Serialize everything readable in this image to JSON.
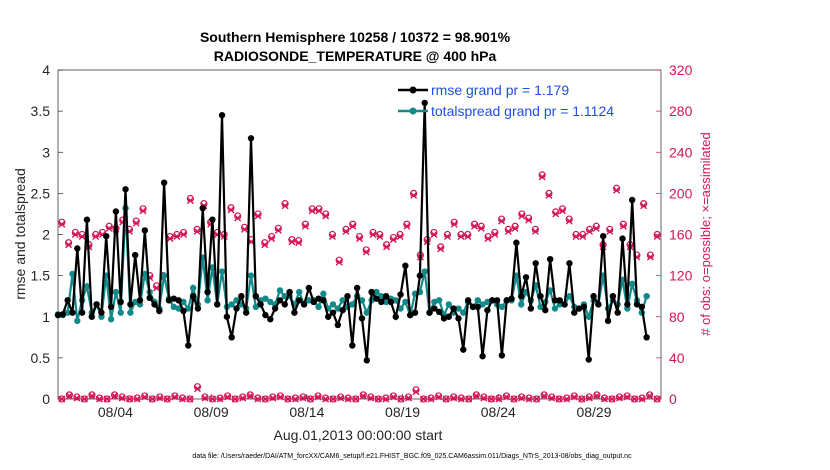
{
  "chart_data": {
    "type": "line",
    "title_line1": "Southern Hemisphere 10258 / 10372 = 98.901%",
    "title_line2": "RADIOSONDE_TEMPERATURE @ 400 hPa",
    "ylabel_left": "rmse and totalspread",
    "ylabel_right": "# of obs: o=possible; ×=assimilated",
    "xlabel": "Aug.01,2013 00:00:00 start",
    "footnote": "data file: /Users/raeder/DAI/ATM_forcXX/CAM6_setup/f.e21.FHIST_BGC.f09_025.CAM6assim.011/Diags_NTrS_2013-08/obs_diag_output.nc",
    "xlim": [
      1,
      32.5
    ],
    "ylim_left": [
      0,
      4
    ],
    "ylim_right": [
      0,
      320
    ],
    "yticks_left": [
      "0",
      "0.5",
      "1",
      "1.5",
      "2",
      "2.5",
      "3",
      "3.5",
      "4"
    ],
    "yticks_right": [
      "0",
      "40",
      "80",
      "120",
      "160",
      "200",
      "240",
      "280",
      "320"
    ],
    "xticks": [
      {
        "label": "08/04",
        "day": 4
      },
      {
        "label": "08/09",
        "day": 9
      },
      {
        "label": "08/14",
        "day": 14
      },
      {
        "label": "08/19",
        "day": 19
      },
      {
        "label": "08/24",
        "day": 24
      },
      {
        "label": "08/29",
        "day": 29
      }
    ],
    "series": [
      {
        "name": "rmse grand pr = 1.179",
        "color": "#000000",
        "axis": "left",
        "values": [
          1.02,
          1.03,
          1.2,
          1.05,
          1.83,
          1.05,
          2.18,
          1.0,
          1.15,
          1.05,
          1.98,
          1.12,
          2.28,
          1.18,
          2.55,
          1.15,
          1.75,
          1.2,
          2.05,
          1.23,
          1.15,
          1.07,
          2.63,
          1.2,
          1.22,
          1.2,
          1.07,
          0.65,
          1.25,
          1.1,
          2.32,
          1.3,
          2.18,
          1.15,
          3.45,
          1.0,
          0.75,
          1.1,
          1.25,
          1.05,
          3.17,
          1.25,
          1.15,
          1.02,
          0.97,
          1.1,
          1.2,
          1.15,
          1.3,
          1.05,
          1.2,
          1.15,
          1.35,
          1.18,
          1.22,
          1.2,
          1.0,
          1.05,
          0.9,
          1.08,
          1.25,
          0.65,
          1.35,
          0.98,
          0.47,
          1.3,
          1.22,
          1.18,
          1.25,
          1.18,
          1.0,
          1.27,
          1.62,
          1.02,
          1.05,
          1.5,
          3.6,
          1.05,
          1.1,
          1.06,
          0.98,
          1.0,
          1.1,
          0.98,
          0.6,
          1.2,
          1.12,
          1.12,
          0.52,
          1.08,
          1.2,
          1.2,
          0.53,
          1.2,
          1.22,
          1.9,
          1.25,
          1.48,
          1.1,
          1.65,
          1.25,
          1.08,
          1.7,
          1.2,
          1.2,
          1.15,
          1.65,
          1.05,
          1.1,
          1.12,
          0.48,
          1.25,
          1.15,
          1.98,
          0.95,
          1.25,
          1.05,
          1.95,
          1.15,
          2.42,
          1.15,
          1.12,
          0.75
        ]
      },
      {
        "name": "totalspread grand pr = 1.1124",
        "color": "#138a8a",
        "axis": "left",
        "values": [
          1.03,
          1.02,
          1.05,
          1.52,
          0.95,
          1.2,
          1.37,
          1.05,
          1.15,
          1.0,
          1.5,
          0.97,
          1.3,
          1.05,
          2.32,
          1.05,
          1.18,
          1.15,
          1.52,
          1.3,
          1.18,
          1.1,
          1.5,
          1.22,
          1.12,
          1.1,
          1.18,
          1.1,
          1.35,
          1.15,
          1.72,
          1.2,
          1.6,
          1.15,
          1.55,
          1.12,
          1.15,
          1.2,
          1.15,
          1.1,
          1.5,
          1.12,
          1.2,
          1.22,
          1.18,
          1.15,
          1.32,
          1.25,
          1.25,
          1.15,
          1.3,
          1.15,
          1.2,
          1.2,
          1.12,
          1.28,
          1.1,
          1.15,
          1.1,
          1.2,
          1.12,
          1.15,
          1.25,
          1.2,
          1.05,
          1.2,
          1.3,
          1.25,
          1.18,
          1.22,
          1.2,
          1.1,
          1.18,
          1.02,
          1.28,
          1.3,
          1.55,
          1.05,
          1.18,
          1.2,
          1.02,
          1.15,
          1.05,
          1.1,
          1.05,
          1.18,
          1.12,
          1.2,
          1.15,
          1.18,
          1.2,
          1.15,
          1.12,
          1.2,
          1.2,
          1.5,
          1.15,
          1.3,
          1.2,
          1.38,
          1.12,
          1.18,
          1.32,
          1.1,
          1.15,
          1.15,
          1.25,
          1.12,
          1.1,
          1.15,
          1.0,
          1.2,
          1.15,
          1.5,
          1.1,
          1.2,
          1.15,
          1.45,
          1.1,
          1.4,
          1.2,
          1.05,
          1.25
        ]
      }
    ],
    "obs_possible_upper": [
      172,
      152,
      162,
      160,
      150,
      160,
      162,
      168,
      166,
      174,
      165,
      173,
      185,
      120,
      110,
      120,
      158,
      160,
      162,
      195,
      165,
      190,
      172,
      162,
      160,
      186,
      178,
      167,
      155,
      180,
      152,
      158,
      166,
      190,
      155,
      154,
      170,
      185,
      185,
      180,
      160,
      135,
      165,
      170,
      158,
      145,
      162,
      160,
      150,
      157,
      160,
      170,
      200,
      140,
      155,
      162,
      148,
      160,
      172,
      160,
      160,
      170,
      168,
      158,
      162,
      175,
      165,
      168,
      180,
      176,
      165,
      218,
      200,
      182,
      185,
      175,
      160,
      160,
      165,
      168,
      150,
      165,
      205,
      170,
      150,
      140,
      190,
      140,
      160
    ],
    "obs_assimilated_upper": [
      170,
      150,
      160,
      158,
      148,
      158,
      160,
      166,
      165,
      172,
      163,
      171,
      183,
      118,
      108,
      118,
      156,
      158,
      160,
      193,
      163,
      188,
      170,
      160,
      158,
      184,
      176,
      165,
      153,
      178,
      150,
      156,
      164,
      188,
      153,
      152,
      168,
      183,
      183,
      178,
      158,
      133,
      163,
      168,
      156,
      143,
      160,
      158,
      148,
      155,
      158,
      168,
      198,
      138,
      153,
      160,
      146,
      158,
      170,
      158,
      158,
      168,
      166,
      156,
      160,
      173,
      163,
      166,
      178,
      174,
      163,
      216,
      198,
      180,
      183,
      173,
      158,
      158,
      163,
      166,
      148,
      163,
      203,
      168,
      148,
      138,
      188,
      138,
      158
    ],
    "obs_possible_lower": [
      0,
      4,
      2,
      0,
      4,
      1,
      0,
      4,
      2,
      0,
      1,
      3,
      0,
      2,
      0,
      3,
      1,
      0,
      12,
      2,
      0,
      1,
      3,
      0,
      2,
      4,
      1,
      0,
      2,
      3,
      0,
      1,
      2,
      0,
      3,
      1,
      0,
      2,
      1,
      0,
      4,
      2,
      0,
      1,
      3,
      0,
      2,
      9,
      0,
      1,
      3,
      0,
      2,
      1,
      0,
      4,
      2,
      0,
      1,
      3,
      0,
      2,
      1,
      0,
      4,
      2,
      0,
      1,
      3,
      0,
      2,
      4,
      1,
      0,
      2,
      3,
      0,
      1,
      4,
      0
    ],
    "obs_assimilated_lower": [
      0,
      3,
      1,
      0,
      3,
      0,
      0,
      3,
      1,
      0,
      0,
      2,
      0,
      1,
      0,
      2,
      0,
      0,
      10,
      1,
      0,
      0,
      2,
      0,
      1,
      3,
      0,
      0,
      1,
      2,
      0,
      0,
      1,
      0,
      2,
      0,
      0,
      1,
      0,
      0,
      3,
      1,
      0,
      0,
      2,
      0,
      1,
      7,
      0,
      0,
      2,
      0,
      1,
      0,
      0,
      3,
      1,
      0,
      0,
      2,
      0,
      1,
      0,
      0,
      3,
      1,
      0,
      0,
      2,
      0,
      1,
      3,
      0,
      0,
      1,
      2,
      0,
      0,
      3,
      0
    ],
    "colors": {
      "rmse": "#000000",
      "spread": "#138a8a",
      "obs": "#d41557",
      "legend_text": "#1f4fe0"
    }
  }
}
